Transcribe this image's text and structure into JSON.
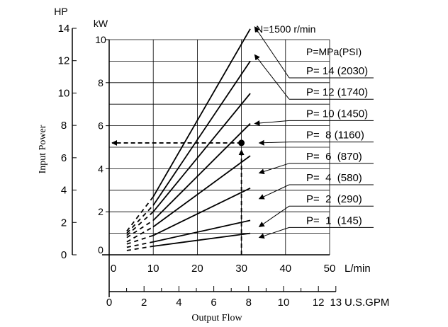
{
  "chart_data": {
    "type": "line",
    "speed_label": "N=1500 r/min",
    "pressure_header": "P=MPa(PSI)",
    "ylabel": "Input Power",
    "xlabel": "Output Flow",
    "hp_unit": "HP",
    "kw_unit": "kW",
    "lmin_unit": "L/min",
    "gpm_unit": "U.S.GPM",
    "x_lmin_ticks": [
      "0",
      "10",
      "20",
      "30",
      "40",
      "50"
    ],
    "x_gpm_ticks": [
      "0",
      "2",
      "4",
      "6",
      "8",
      "10",
      "12",
      "13"
    ],
    "x_gpm_values": [
      0,
      2,
      4,
      6,
      8,
      10,
      12,
      13
    ],
    "y_kw_ticks": [
      "0",
      "2",
      "4",
      "6",
      "8",
      "10"
    ],
    "y_hp_ticks": [
      "0",
      "2",
      "4",
      "6",
      "8",
      "10",
      "12",
      "14"
    ],
    "xlim_lmin": [
      0,
      50
    ],
    "ylim_kw": [
      0,
      10
    ],
    "grid": true,
    "series": [
      {
        "name": "P= 14 (2030)",
        "solid": [
          [
            10,
            2.7
          ],
          [
            32,
            10.5
          ]
        ],
        "dashed": [
          [
            4,
            1.1
          ],
          [
            10,
            2.7
          ]
        ],
        "arrow_tip": [
          33,
          10.6
        ]
      },
      {
        "name": "P= 12 (1740)",
        "solid": [
          [
            10,
            2.3
          ],
          [
            32,
            9.0
          ]
        ],
        "dashed": [
          [
            4,
            1.0
          ],
          [
            10,
            2.3
          ]
        ],
        "arrow_tip": [
          33,
          9.3
        ]
      },
      {
        "name": "P= 10 (1450)",
        "solid": [
          [
            10,
            2.0
          ],
          [
            32,
            7.5
          ]
        ],
        "dashed": [
          [
            4,
            0.9
          ],
          [
            10,
            2.0
          ]
        ],
        "arrow_tip": [
          33,
          6.1
        ]
      },
      {
        "name": "P=  8 (1160)",
        "solid": [
          [
            10,
            1.6
          ],
          [
            32,
            6.1
          ]
        ],
        "dashed": [
          [
            4,
            0.8
          ],
          [
            10,
            1.6
          ]
        ],
        "arrow_tip": [
          34,
          5.2
        ]
      },
      {
        "name": "P=  6  (870)",
        "solid": [
          [
            10,
            1.3
          ],
          [
            32,
            4.6
          ]
        ],
        "dashed": [
          [
            4,
            0.6
          ],
          [
            10,
            1.3
          ]
        ],
        "arrow_tip": [
          34,
          3.8
        ]
      },
      {
        "name": "P=  4  (580)",
        "solid": [
          [
            10,
            0.9
          ],
          [
            32,
            3.1
          ]
        ],
        "dashed": [
          [
            4,
            0.5
          ],
          [
            10,
            0.9
          ]
        ],
        "arrow_tip": [
          34,
          2.6
        ]
      },
      {
        "name": "P=  2  (290)",
        "solid": [
          [
            10,
            0.6
          ],
          [
            32,
            1.6
          ]
        ],
        "dashed": [
          [
            4,
            0.35
          ],
          [
            10,
            0.6
          ]
        ],
        "arrow_tip": [
          34,
          1.3
        ]
      },
      {
        "name": "P=  1  (145)",
        "solid": [
          [
            10,
            0.4
          ],
          [
            32,
            1.0
          ]
        ],
        "dashed": [
          [
            4,
            0.2
          ],
          [
            10,
            0.4
          ]
        ],
        "arrow_tip": [
          34,
          0.8
        ]
      }
    ],
    "annotation": {
      "flow_lmin": 30,
      "power_kw": 5.2
    }
  }
}
